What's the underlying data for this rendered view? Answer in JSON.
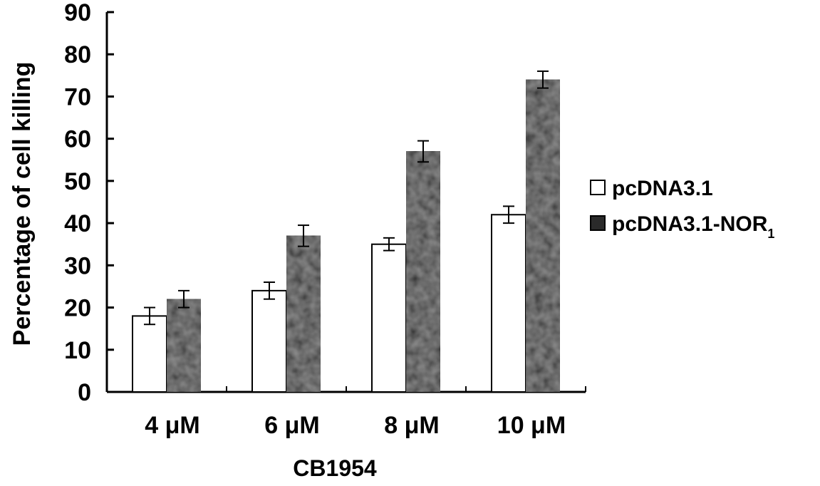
{
  "chart_data": {
    "type": "bar",
    "title": "",
    "xlabel": "CB1954",
    "ylabel": "Percentage of cell killing",
    "ylim": [
      0,
      90
    ],
    "yticks": [
      0,
      10,
      20,
      30,
      40,
      50,
      60,
      70,
      80,
      90
    ],
    "categories": [
      "4 μM",
      "6 μM",
      "8 μM",
      "10 μM"
    ],
    "series": [
      {
        "name": "pcDNA3.1",
        "values": [
          18,
          24,
          35,
          42
        ],
        "errors": [
          2,
          2,
          1.5,
          2
        ]
      },
      {
        "name": "pcDNA3.1-NOR",
        "name_subscript": "1",
        "values": [
          22,
          37,
          57,
          74
        ],
        "errors": [
          2,
          2.5,
          2.5,
          2
        ]
      }
    ],
    "grid": false,
    "legend": "right",
    "colors": {
      "series_0_fill": "#ffffff",
      "series_1_fill": "#2a2a2a",
      "axis": "#000000"
    }
  }
}
